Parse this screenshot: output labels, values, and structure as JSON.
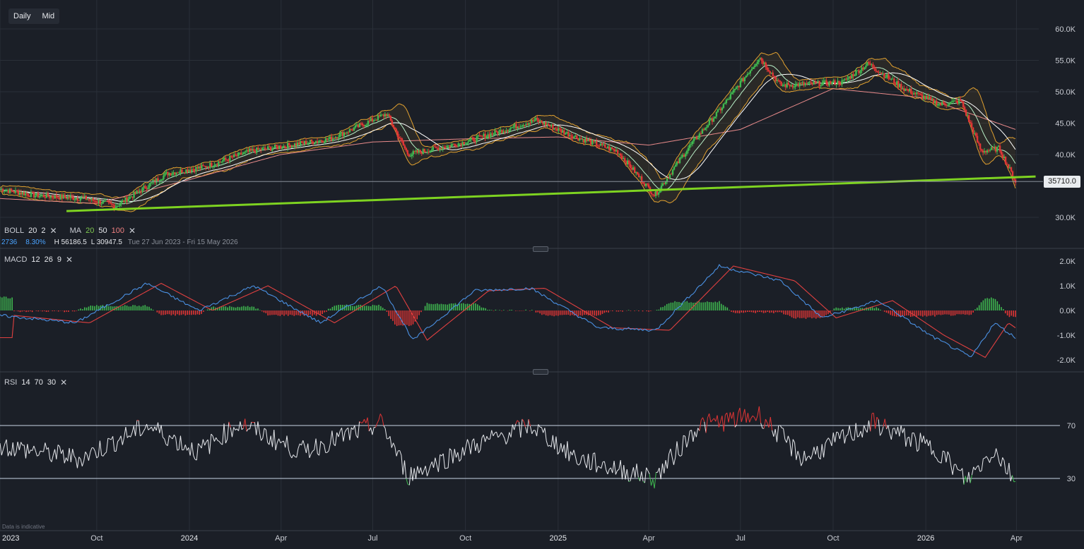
{
  "toolbar": {
    "interval_label": "Daily",
    "price_mode_label": "Mid"
  },
  "indicators": {
    "boll": {
      "name": "BOLL",
      "p1": "20",
      "p2": "2"
    },
    "ma": {
      "name": "MA",
      "p1": "20",
      "p2": "50",
      "p3": "100"
    },
    "macd": {
      "name": "MACD",
      "p1": "12",
      "p2": "26",
      "p3": "9"
    },
    "rsi": {
      "name": "RSI",
      "p1": "14",
      "p2": "70",
      "p3": "30"
    }
  },
  "info": {
    "change": "2736",
    "change_pct": "8.30%",
    "high": "H 56186.5",
    "low": "L 30947.5",
    "range": "Tue 27 Jun 2023 - Fri 15 May 2026"
  },
  "last_price": "35710.0",
  "footnote": "Data is indicative",
  "colors": {
    "background": "#1b1f27",
    "grid": "#2a2f38",
    "up": "#3fb950",
    "down": "#e03535",
    "trendline": "#7ed321",
    "boll": "#e0a030",
    "ma20": "#b8f0c8",
    "ma50": "#ffffff",
    "ma100": "#e88a8a",
    "macd_line": "#4a90e2",
    "signal_line": "#e04040",
    "rsi_line": "#e6e8ec"
  },
  "chart_data": [
    {
      "type": "candlestick",
      "title": "",
      "x_axis": {
        "ticks": [
          "2023",
          "Oct",
          "2024",
          "Apr",
          "Jul",
          "Oct",
          "2025",
          "Apr",
          "Jul",
          "Oct",
          "2026",
          "Apr"
        ]
      },
      "y_axis": {
        "ticks": [
          "60.0K",
          "55.0K",
          "50.0K",
          "45.0K",
          "40.0K",
          "30.0K"
        ],
        "range": [
          28000,
          62000
        ]
      },
      "series": [
        {
          "name": "Price",
          "x": [
            "2023-06-27",
            "2023-08-01",
            "2023-09-20",
            "2023-10-20",
            "2023-12-10",
            "2024-01-15",
            "2024-03-01",
            "2024-04-10",
            "2024-05-20",
            "2024-07-15",
            "2024-08-05",
            "2024-10-01",
            "2024-12-10",
            "2025-01-15",
            "2025-03-01",
            "2025-04-07",
            "2025-05-10",
            "2025-06-15",
            "2025-07-20",
            "2025-08-10",
            "2025-10-10",
            "2025-11-05",
            "2025-12-10",
            "2026-01-15",
            "2026-02-05",
            "2026-02-25",
            "2026-03-15",
            "2026-03-31"
          ],
          "y": [
            34500,
            33500,
            33000,
            31800,
            37000,
            38000,
            40500,
            41500,
            42500,
            46500,
            40000,
            42000,
            45500,
            43000,
            40500,
            33500,
            41000,
            48000,
            55500,
            51000,
            51500,
            54500,
            50500,
            48000,
            48500,
            40500,
            41000,
            35700
          ]
        },
        {
          "name": "MA 100",
          "x": [
            "2023-06-27",
            "2023-10-01",
            "2024-01-01",
            "2024-04-01",
            "2024-07-01",
            "2024-10-01",
            "2025-01-01",
            "2025-04-01",
            "2025-07-01",
            "2025-10-01",
            "2026-01-01",
            "2026-03-31"
          ],
          "y": [
            33000,
            32200,
            36000,
            40000,
            42000,
            42500,
            42800,
            41500,
            44000,
            50500,
            49000,
            44000
          ]
        },
        {
          "name": "Trendline",
          "x": [
            "2023-09-01",
            "2026-04-20"
          ],
          "y": [
            31000,
            36500
          ]
        }
      ],
      "last_value": 35710.0
    },
    {
      "type": "line",
      "title": "MACD 12 26 9",
      "y_axis": {
        "ticks": [
          "2.0K",
          "1.0K",
          "0.0K",
          "-1.0K",
          "-2.0K"
        ],
        "range": [
          -2000,
          2000
        ]
      },
      "series": [
        {
          "name": "MACD",
          "x": [
            "2023-06-27",
            "2023-09-10",
            "2023-11-20",
            "2024-01-10",
            "2024-03-05",
            "2024-05-10",
            "2024-07-10",
            "2024-08-10",
            "2024-10-10",
            "2024-12-05",
            "2025-02-10",
            "2025-04-08",
            "2025-06-10",
            "2025-08-10",
            "2025-09-20",
            "2025-11-15",
            "2026-01-05",
            "2026-02-15",
            "2026-03-10",
            "2026-03-31"
          ],
          "y": [
            -200,
            -500,
            1100,
            0,
            1000,
            -500,
            1000,
            -1200,
            800,
            900,
            -700,
            -800,
            1800,
            1200,
            -300,
            400,
            -1000,
            -1900,
            -500,
            -1100
          ]
        }
      ]
    },
    {
      "type": "line",
      "title": "RSI 14 70 30",
      "y_axis": {
        "ticks": [
          "70",
          "30"
        ],
        "range": [
          0,
          100
        ]
      },
      "series": [
        {
          "name": "RSI",
          "x": [
            "2023-06-27",
            "2023-09-15",
            "2023-11-20",
            "2024-01-10",
            "2024-02-20",
            "2024-04-20",
            "2024-07-10",
            "2024-08-05",
            "2024-10-10",
            "2024-12-05",
            "2025-01-20",
            "2025-04-07",
            "2025-05-20",
            "2025-07-20",
            "2025-09-01",
            "2025-11-10",
            "2026-01-15",
            "2026-02-10",
            "2026-03-10",
            "2026-03-31"
          ],
          "y": [
            55,
            45,
            70,
            50,
            72,
            50,
            72,
            32,
            55,
            70,
            45,
            30,
            70,
            78,
            45,
            72,
            50,
            28,
            52,
            28
          ]
        }
      ]
    }
  ]
}
